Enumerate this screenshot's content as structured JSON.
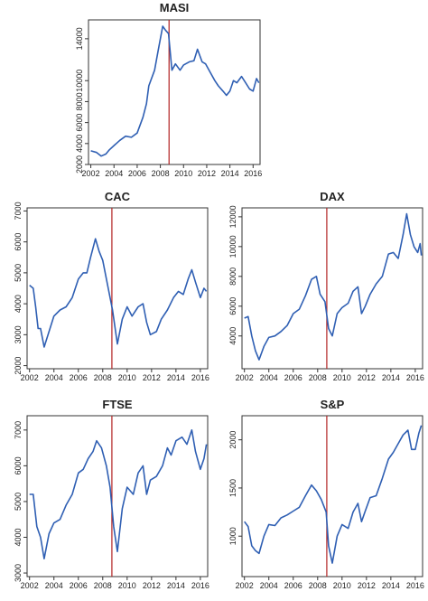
{
  "chart_data": [
    {
      "type": "line",
      "title": "MASI",
      "xlim": [
        2001.8,
        2016.6
      ],
      "ylim": [
        2000,
        15800
      ],
      "xticks": [
        2002,
        2004,
        2006,
        2008,
        2010,
        2012,
        2014,
        2016
      ],
      "yticks": [
        2000,
        4000,
        6000,
        8000,
        10000,
        14000
      ],
      "ytick_labels": [
        "2000",
        "4000",
        "6000",
        "8000",
        "10000",
        "14000"
      ],
      "vline": 2008.75,
      "colors": {
        "line": "#2f5fb3",
        "vline": "#b22222"
      },
      "points": [
        [
          2002.0,
          3300
        ],
        [
          2002.5,
          3150
        ],
        [
          2002.9,
          2800
        ],
        [
          2003.3,
          3000
        ],
        [
          2003.6,
          3400
        ],
        [
          2004.0,
          3800
        ],
        [
          2004.5,
          4300
        ],
        [
          2005.0,
          4700
        ],
        [
          2005.5,
          4600
        ],
        [
          2006.0,
          5000
        ],
        [
          2006.5,
          6500
        ],
        [
          2006.8,
          7800
        ],
        [
          2007.0,
          9500
        ],
        [
          2007.5,
          11000
        ],
        [
          2007.8,
          12800
        ],
        [
          2008.2,
          15200
        ],
        [
          2008.45,
          14800
        ],
        [
          2008.7,
          14500
        ],
        [
          2009.0,
          11000
        ],
        [
          2009.3,
          11600
        ],
        [
          2009.7,
          11000
        ],
        [
          2010.0,
          11500
        ],
        [
          2010.5,
          11800
        ],
        [
          2010.9,
          11900
        ],
        [
          2011.2,
          13000
        ],
        [
          2011.6,
          11800
        ],
        [
          2011.9,
          11600
        ],
        [
          2012.3,
          10800
        ],
        [
          2012.7,
          10000
        ],
        [
          2013.0,
          9500
        ],
        [
          2013.4,
          9000
        ],
        [
          2013.7,
          8600
        ],
        [
          2014.0,
          9000
        ],
        [
          2014.3,
          10000
        ],
        [
          2014.6,
          9800
        ],
        [
          2015.0,
          10400
        ],
        [
          2015.3,
          9900
        ],
        [
          2015.7,
          9200
        ],
        [
          2016.0,
          9000
        ],
        [
          2016.3,
          10200
        ],
        [
          2016.5,
          9800
        ]
      ]
    },
    {
      "type": "line",
      "title": "CAC",
      "xlim": [
        2001.8,
        2016.6
      ],
      "ylim": [
        1900,
        7100
      ],
      "xticks": [
        2002,
        2004,
        2006,
        2008,
        2010,
        2012,
        2014,
        2016
      ],
      "yticks": [
        2000,
        3000,
        4000,
        5000,
        6000,
        7000
      ],
      "ytick_labels": [
        "2000",
        "3000",
        "4000",
        "5000",
        "6000",
        "7000"
      ],
      "vline": 2008.75,
      "colors": {
        "line": "#2f5fb3",
        "vline": "#b22222"
      },
      "points": [
        [
          2002.0,
          4600
        ],
        [
          2002.3,
          4500
        ],
        [
          2002.5,
          3900
        ],
        [
          2002.7,
          3200
        ],
        [
          2002.9,
          3200
        ],
        [
          2003.2,
          2600
        ],
        [
          2003.6,
          3100
        ],
        [
          2004.0,
          3600
        ],
        [
          2004.5,
          3800
        ],
        [
          2005.0,
          3900
        ],
        [
          2005.5,
          4200
        ],
        [
          2006.0,
          4800
        ],
        [
          2006.4,
          5000
        ],
        [
          2006.7,
          5000
        ],
        [
          2007.0,
          5500
        ],
        [
          2007.4,
          6100
        ],
        [
          2007.7,
          5700
        ],
        [
          2008.0,
          5400
        ],
        [
          2008.4,
          4600
        ],
        [
          2008.8,
          3800
        ],
        [
          2009.2,
          2700
        ],
        [
          2009.6,
          3500
        ],
        [
          2010.0,
          3900
        ],
        [
          2010.4,
          3600
        ],
        [
          2010.9,
          3900
        ],
        [
          2011.3,
          4000
        ],
        [
          2011.6,
          3400
        ],
        [
          2011.9,
          3000
        ],
        [
          2012.4,
          3100
        ],
        [
          2012.8,
          3500
        ],
        [
          2013.3,
          3800
        ],
        [
          2013.8,
          4200
        ],
        [
          2014.2,
          4400
        ],
        [
          2014.6,
          4300
        ],
        [
          2015.0,
          4800
        ],
        [
          2015.3,
          5100
        ],
        [
          2015.6,
          4700
        ],
        [
          2016.0,
          4200
        ],
        [
          2016.3,
          4500
        ],
        [
          2016.5,
          4400
        ]
      ]
    },
    {
      "type": "line",
      "title": "DAX",
      "xlim": [
        2001.8,
        2016.6
      ],
      "ylim": [
        1800,
        12600
      ],
      "xticks": [
        2002,
        2004,
        2006,
        2008,
        2010,
        2012,
        2014,
        2016
      ],
      "yticks": [
        4000,
        6000,
        8000,
        10000,
        12000
      ],
      "ytick_labels": [
        "4000",
        "6000",
        "8000",
        "10000",
        "12000"
      ],
      "vline": 2008.75,
      "colors": {
        "line": "#2f5fb3",
        "vline": "#b22222"
      },
      "points": [
        [
          2002.0,
          5200
        ],
        [
          2002.3,
          5300
        ],
        [
          2002.6,
          4000
        ],
        [
          2002.9,
          3000
        ],
        [
          2003.2,
          2400
        ],
        [
          2003.6,
          3300
        ],
        [
          2004.0,
          3900
        ],
        [
          2004.5,
          4000
        ],
        [
          2005.0,
          4300
        ],
        [
          2005.5,
          4700
        ],
        [
          2006.0,
          5500
        ],
        [
          2006.5,
          5800
        ],
        [
          2007.0,
          6700
        ],
        [
          2007.5,
          7800
        ],
        [
          2007.9,
          8000
        ],
        [
          2008.2,
          6800
        ],
        [
          2008.6,
          6300
        ],
        [
          2008.9,
          4500
        ],
        [
          2009.2,
          4000
        ],
        [
          2009.6,
          5500
        ],
        [
          2010.0,
          5900
        ],
        [
          2010.5,
          6200
        ],
        [
          2010.9,
          7000
        ],
        [
          2011.3,
          7300
        ],
        [
          2011.6,
          5500
        ],
        [
          2011.9,
          6000
        ],
        [
          2012.3,
          6800
        ],
        [
          2012.8,
          7500
        ],
        [
          2013.3,
          8000
        ],
        [
          2013.8,
          9500
        ],
        [
          2014.2,
          9600
        ],
        [
          2014.6,
          9200
        ],
        [
          2015.0,
          10800
        ],
        [
          2015.3,
          12200
        ],
        [
          2015.6,
          10800
        ],
        [
          2015.9,
          10000
        ],
        [
          2016.2,
          9600
        ],
        [
          2016.4,
          10200
        ],
        [
          2016.5,
          9400
        ]
      ]
    },
    {
      "type": "line",
      "title": "FTSE",
      "xlim": [
        2001.8,
        2016.6
      ],
      "ylim": [
        2900,
        7400
      ],
      "xticks": [
        2002,
        2004,
        2006,
        2008,
        2010,
        2012,
        2014,
        2016
      ],
      "yticks": [
        3000,
        4000,
        5000,
        6000,
        7000
      ],
      "ytick_labels": [
        "3000",
        "4000",
        "5000",
        "6000",
        "7000"
      ],
      "vline": 2008.75,
      "colors": {
        "line": "#2f5fb3",
        "vline": "#b22222"
      },
      "points": [
        [
          2002.0,
          5200
        ],
        [
          2002.3,
          5200
        ],
        [
          2002.6,
          4300
        ],
        [
          2002.9,
          4000
        ],
        [
          2003.2,
          3400
        ],
        [
          2003.6,
          4100
        ],
        [
          2004.0,
          4400
        ],
        [
          2004.5,
          4500
        ],
        [
          2005.0,
          4900
        ],
        [
          2005.5,
          5200
        ],
        [
          2006.0,
          5800
        ],
        [
          2006.4,
          5900
        ],
        [
          2006.8,
          6200
        ],
        [
          2007.2,
          6400
        ],
        [
          2007.5,
          6700
        ],
        [
          2007.9,
          6500
        ],
        [
          2008.3,
          6000
        ],
        [
          2008.6,
          5400
        ],
        [
          2008.9,
          4300
        ],
        [
          2009.2,
          3600
        ],
        [
          2009.6,
          4800
        ],
        [
          2010.0,
          5400
        ],
        [
          2010.5,
          5200
        ],
        [
          2010.9,
          5800
        ],
        [
          2011.3,
          6000
        ],
        [
          2011.6,
          5200
        ],
        [
          2011.9,
          5600
        ],
        [
          2012.4,
          5700
        ],
        [
          2012.9,
          6000
        ],
        [
          2013.3,
          6500
        ],
        [
          2013.6,
          6300
        ],
        [
          2014.0,
          6700
        ],
        [
          2014.5,
          6800
        ],
        [
          2014.9,
          6600
        ],
        [
          2015.3,
          7000
        ],
        [
          2015.6,
          6400
        ],
        [
          2016.0,
          5900
        ],
        [
          2016.3,
          6200
        ],
        [
          2016.5,
          6600
        ]
      ]
    },
    {
      "type": "line",
      "title": "S&P",
      "xlim": [
        2001.8,
        2016.6
      ],
      "ylim": [
        580,
        2250
      ],
      "xticks": [
        2002,
        2004,
        2006,
        2008,
        2010,
        2012,
        2014,
        2016
      ],
      "yticks": [
        1000,
        1500,
        2000
      ],
      "ytick_labels": [
        "1000",
        "1500",
        "2000"
      ],
      "vline": 2008.75,
      "colors": {
        "line": "#2f5fb3",
        "vline": "#b22222"
      },
      "points": [
        [
          2002.0,
          1150
        ],
        [
          2002.3,
          1100
        ],
        [
          2002.6,
          900
        ],
        [
          2002.9,
          850
        ],
        [
          2003.2,
          820
        ],
        [
          2003.6,
          1000
        ],
        [
          2004.0,
          1120
        ],
        [
          2004.5,
          1110
        ],
        [
          2005.0,
          1190
        ],
        [
          2005.5,
          1220
        ],
        [
          2006.0,
          1260
        ],
        [
          2006.5,
          1300
        ],
        [
          2007.0,
          1420
        ],
        [
          2007.5,
          1530
        ],
        [
          2007.9,
          1470
        ],
        [
          2008.3,
          1380
        ],
        [
          2008.7,
          1250
        ],
        [
          2008.9,
          900
        ],
        [
          2009.2,
          720
        ],
        [
          2009.6,
          1000
        ],
        [
          2010.0,
          1120
        ],
        [
          2010.5,
          1080
        ],
        [
          2010.9,
          1250
        ],
        [
          2011.3,
          1340
        ],
        [
          2011.6,
          1150
        ],
        [
          2011.9,
          1260
        ],
        [
          2012.3,
          1400
        ],
        [
          2012.8,
          1420
        ],
        [
          2013.3,
          1600
        ],
        [
          2013.8,
          1800
        ],
        [
          2014.2,
          1870
        ],
        [
          2014.6,
          1960
        ],
        [
          2015.0,
          2050
        ],
        [
          2015.4,
          2100
        ],
        [
          2015.7,
          1900
        ],
        [
          2016.0,
          1900
        ],
        [
          2016.3,
          2070
        ],
        [
          2016.5,
          2150
        ]
      ]
    }
  ]
}
